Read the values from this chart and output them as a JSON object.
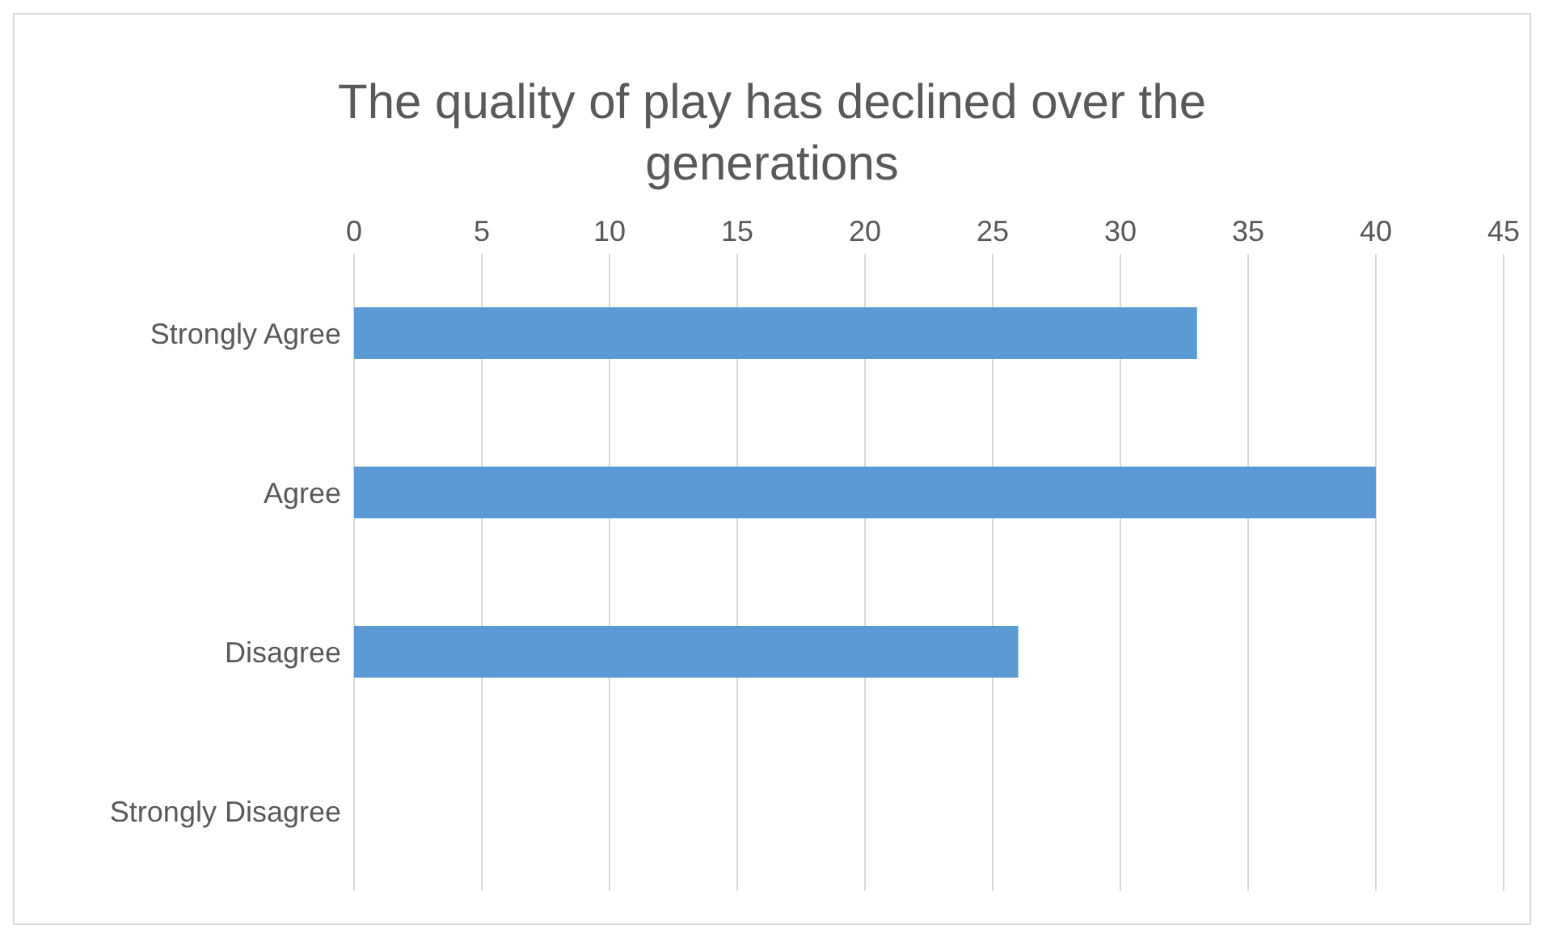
{
  "chart_data": {
    "type": "bar",
    "orientation": "horizontal",
    "title": "The quality of play has declined over the generations",
    "categories": [
      "Strongly Agree",
      "Agree",
      "Disagree",
      "Strongly Disagree"
    ],
    "values": [
      33,
      40,
      26,
      0
    ],
    "color": "#5b9bd5",
    "xlim": [
      0,
      45
    ],
    "xticks": [
      0,
      5,
      10,
      15,
      20,
      25,
      30,
      35,
      40,
      45
    ],
    "grid": "x"
  }
}
